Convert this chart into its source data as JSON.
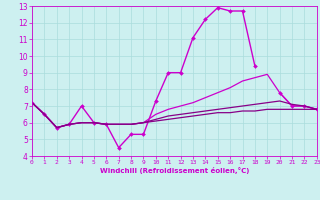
{
  "xlabel": "Windchill (Refroidissement éolien,°C)",
  "ylabel": "",
  "xlim": [
    0,
    23
  ],
  "ylim": [
    4,
    13
  ],
  "xticks": [
    0,
    1,
    2,
    3,
    4,
    5,
    6,
    7,
    8,
    9,
    10,
    11,
    12,
    13,
    14,
    15,
    16,
    17,
    18,
    19,
    20,
    21,
    22,
    23
  ],
  "yticks": [
    4,
    5,
    6,
    7,
    8,
    9,
    10,
    11,
    12,
    13
  ],
  "bg_color": "#cdf0f0",
  "line_color_main": "#cc00cc",
  "line_color_dark": "#880088",
  "grid_color": "#aadddd",
  "lines": [
    {
      "x": [
        0,
        1,
        2,
        3,
        4,
        5,
        6,
        7,
        8,
        9,
        10,
        11,
        12,
        13,
        14,
        15,
        16,
        17,
        18,
        19,
        20,
        21,
        22,
        23
      ],
      "y": [
        7.2,
        6.5,
        5.7,
        5.9,
        7.0,
        6.0,
        5.9,
        4.5,
        5.3,
        5.3,
        7.3,
        9.0,
        9.0,
        11.1,
        12.2,
        12.9,
        12.7,
        12.7,
        9.4,
        null,
        7.8,
        7.0,
        7.0,
        6.8
      ],
      "marker": "D",
      "color": "#cc00cc",
      "lw": 1.0
    },
    {
      "x": [
        0,
        1,
        2,
        3,
        4,
        5,
        6,
        7,
        8,
        9,
        10,
        11,
        12,
        13,
        14,
        15,
        16,
        17,
        18,
        19,
        20,
        21,
        22,
        23
      ],
      "y": [
        7.2,
        6.5,
        5.7,
        5.9,
        6.0,
        6.0,
        5.9,
        5.9,
        5.9,
        6.0,
        6.5,
        6.8,
        7.0,
        7.2,
        7.5,
        7.8,
        8.1,
        8.5,
        8.7,
        8.9,
        7.8,
        7.0,
        7.0,
        6.8
      ],
      "marker": null,
      "color": "#cc00cc",
      "lw": 0.9
    },
    {
      "x": [
        0,
        1,
        2,
        3,
        4,
        5,
        6,
        7,
        8,
        9,
        10,
        11,
        12,
        13,
        14,
        15,
        16,
        17,
        18,
        19,
        20,
        21,
        22,
        23
      ],
      "y": [
        7.2,
        6.5,
        5.7,
        5.9,
        6.0,
        6.0,
        5.9,
        5.9,
        5.9,
        6.0,
        6.2,
        6.4,
        6.5,
        6.6,
        6.7,
        6.8,
        6.9,
        7.0,
        7.1,
        7.2,
        7.3,
        7.1,
        7.0,
        6.8
      ],
      "marker": null,
      "color": "#880088",
      "lw": 0.9
    },
    {
      "x": [
        0,
        1,
        2,
        3,
        4,
        5,
        6,
        7,
        8,
        9,
        10,
        11,
        12,
        13,
        14,
        15,
        16,
        17,
        18,
        19,
        20,
        21,
        22,
        23
      ],
      "y": [
        7.2,
        6.5,
        5.7,
        5.9,
        6.0,
        6.0,
        5.9,
        5.9,
        5.9,
        6.0,
        6.1,
        6.2,
        6.3,
        6.4,
        6.5,
        6.6,
        6.6,
        6.7,
        6.7,
        6.8,
        6.8,
        6.8,
        6.8,
        6.8
      ],
      "marker": null,
      "color": "#880088",
      "lw": 0.9
    }
  ]
}
